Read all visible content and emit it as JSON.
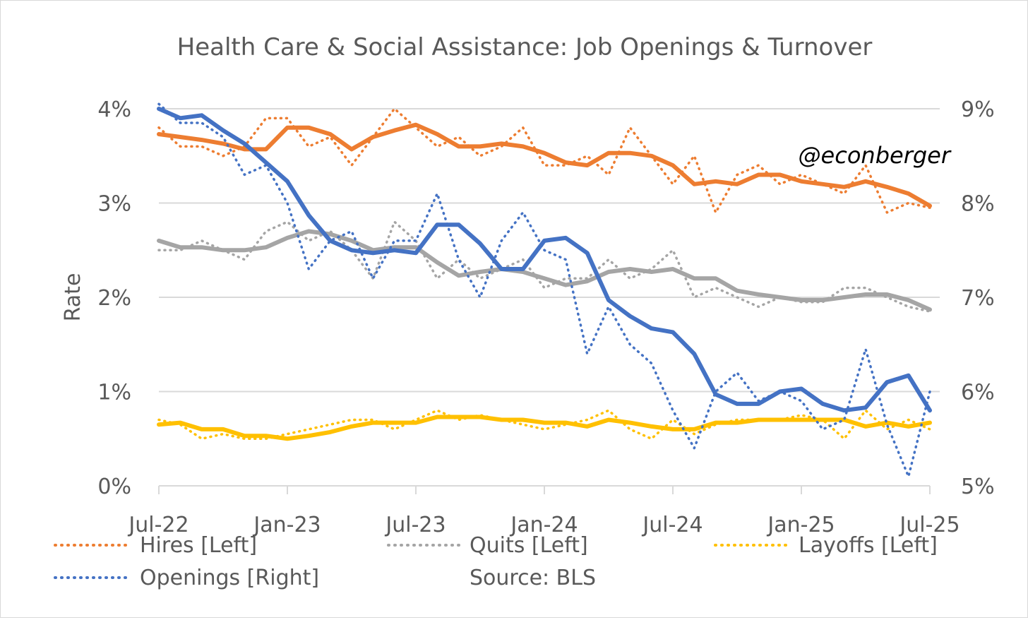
{
  "chart_data": {
    "type": "line",
    "title": "Health Care & Social Assistance: Job Openings & Turnover",
    "ylabel_left": "Rate",
    "ylim_left": [
      0,
      4
    ],
    "ylim_right": [
      5,
      9
    ],
    "yticks_left": [
      "0%",
      "1%",
      "2%",
      "3%",
      "4%"
    ],
    "yticks_right": [
      "5%",
      "6%",
      "7%",
      "8%",
      "9%"
    ],
    "xticks": [
      "Jul-22",
      "Jan-23",
      "Jul-23",
      "Jan-24",
      "Jul-24",
      "Jan-25",
      "Jul-25"
    ],
    "xtick_index": [
      0,
      6,
      12,
      18,
      24,
      30,
      36
    ],
    "watermark": "@econberger",
    "source": "Source: BLS",
    "legend": [
      "Hires [Left]",
      "Quits [Left]",
      "Layoffs [Left]",
      "Openings [Right]"
    ],
    "solid_lines": "3-month moving average",
    "months": [
      "Jul-22",
      "Aug-22",
      "Sep-22",
      "Oct-22",
      "Nov-22",
      "Dec-22",
      "Jan-23",
      "Feb-23",
      "Mar-23",
      "Apr-23",
      "May-23",
      "Jun-23",
      "Jul-23",
      "Aug-23",
      "Sep-23",
      "Oct-23",
      "Nov-23",
      "Dec-23",
      "Jan-24",
      "Feb-24",
      "Mar-24",
      "Apr-24",
      "May-24",
      "Jun-24",
      "Jul-24",
      "Aug-24",
      "Sep-24",
      "Oct-24",
      "Nov-24",
      "Dec-24",
      "Jan-25",
      "Feb-25",
      "Mar-25",
      "Apr-25",
      "May-25",
      "Jun-25",
      "Jul-25"
    ],
    "series": [
      {
        "name": "Hires [Left]",
        "axis": "left",
        "color": "#ED7D31",
        "monthly": [
          3.8,
          3.6,
          3.6,
          3.5,
          3.6,
          3.9,
          3.9,
          3.6,
          3.7,
          3.4,
          3.7,
          4.0,
          3.8,
          3.6,
          3.7,
          3.5,
          3.6,
          3.8,
          3.4,
          3.4,
          3.5,
          3.3,
          3.8,
          3.5,
          3.2,
          3.5,
          2.9,
          3.3,
          3.4,
          3.2,
          3.3,
          3.2,
          3.1,
          3.4,
          2.9,
          3.0,
          2.95
        ],
        "average": [
          3.73,
          3.7,
          3.67,
          3.63,
          3.57,
          3.57,
          3.8,
          3.8,
          3.73,
          3.57,
          3.7,
          3.77,
          3.83,
          3.73,
          3.6,
          3.6,
          3.63,
          3.6,
          3.53,
          3.43,
          3.4,
          3.53,
          3.53,
          3.5,
          3.4,
          3.2,
          3.23,
          3.2,
          3.3,
          3.3,
          3.23,
          3.2,
          3.17,
          3.23,
          3.17,
          3.1,
          2.97
        ]
      },
      {
        "name": "Quits [Left]",
        "axis": "left",
        "color": "#A5A5A5",
        "monthly": [
          2.5,
          2.5,
          2.6,
          2.5,
          2.4,
          2.7,
          2.8,
          2.6,
          2.7,
          2.5,
          2.2,
          2.8,
          2.6,
          2.2,
          2.4,
          2.2,
          2.3,
          2.4,
          2.1,
          2.2,
          2.2,
          2.4,
          2.2,
          2.3,
          2.5,
          2.0,
          2.1,
          2.0,
          1.9,
          2.0,
          1.95,
          1.95,
          2.1,
          2.1,
          2.0,
          1.9,
          1.85
        ],
        "average": [
          2.6,
          2.53,
          2.53,
          2.5,
          2.5,
          2.53,
          2.63,
          2.7,
          2.67,
          2.6,
          2.5,
          2.53,
          2.53,
          2.37,
          2.23,
          2.27,
          2.3,
          2.27,
          2.2,
          2.13,
          2.17,
          2.27,
          2.3,
          2.27,
          2.3,
          2.2,
          2.2,
          2.07,
          2.03,
          2.0,
          1.97,
          1.97,
          2.0,
          2.03,
          2.03,
          1.97,
          1.87
        ]
      },
      {
        "name": "Layoffs [Left]",
        "axis": "left",
        "color": "#FFC000",
        "monthly": [
          0.7,
          0.65,
          0.5,
          0.55,
          0.5,
          0.5,
          0.55,
          0.6,
          0.65,
          0.7,
          0.7,
          0.6,
          0.7,
          0.8,
          0.7,
          0.75,
          0.7,
          0.65,
          0.6,
          0.65,
          0.7,
          0.8,
          0.6,
          0.5,
          0.7,
          0.55,
          0.65,
          0.7,
          0.7,
          0.7,
          0.75,
          0.7,
          0.5,
          0.8,
          0.6,
          0.7,
          0.6
        ],
        "average": [
          0.65,
          0.67,
          0.6,
          0.6,
          0.53,
          0.53,
          0.5,
          0.53,
          0.57,
          0.63,
          0.67,
          0.67,
          0.67,
          0.73,
          0.73,
          0.73,
          0.7,
          0.7,
          0.67,
          0.67,
          0.63,
          0.7,
          0.67,
          0.63,
          0.6,
          0.6,
          0.67,
          0.67,
          0.7,
          0.7,
          0.7,
          0.7,
          0.7,
          0.63,
          0.67,
          0.63,
          0.67
        ]
      },
      {
        "name": "Openings [Right]",
        "axis": "right",
        "color": "#4472C4",
        "monthly": [
          9.05,
          8.85,
          8.85,
          8.7,
          8.3,
          8.4,
          8.0,
          7.3,
          7.6,
          7.7,
          7.2,
          7.6,
          7.6,
          8.1,
          7.4,
          7.0,
          7.6,
          7.9,
          7.5,
          7.4,
          6.4,
          6.9,
          6.5,
          6.3,
          5.8,
          5.4,
          6.0,
          6.2,
          5.9,
          6.0,
          5.9,
          5.6,
          5.7,
          6.45,
          5.65,
          5.1,
          6.0
        ],
        "average": [
          9.0,
          8.9,
          8.93,
          8.77,
          8.63,
          8.43,
          8.23,
          7.87,
          7.6,
          7.5,
          7.47,
          7.5,
          7.47,
          7.77,
          7.77,
          7.57,
          7.3,
          7.3,
          7.6,
          7.63,
          7.47,
          6.97,
          6.8,
          6.67,
          6.63,
          6.4,
          5.97,
          5.87,
          5.87,
          6.0,
          6.03,
          5.87,
          5.8,
          5.83,
          6.1,
          6.17,
          5.8
        ]
      }
    ]
  }
}
